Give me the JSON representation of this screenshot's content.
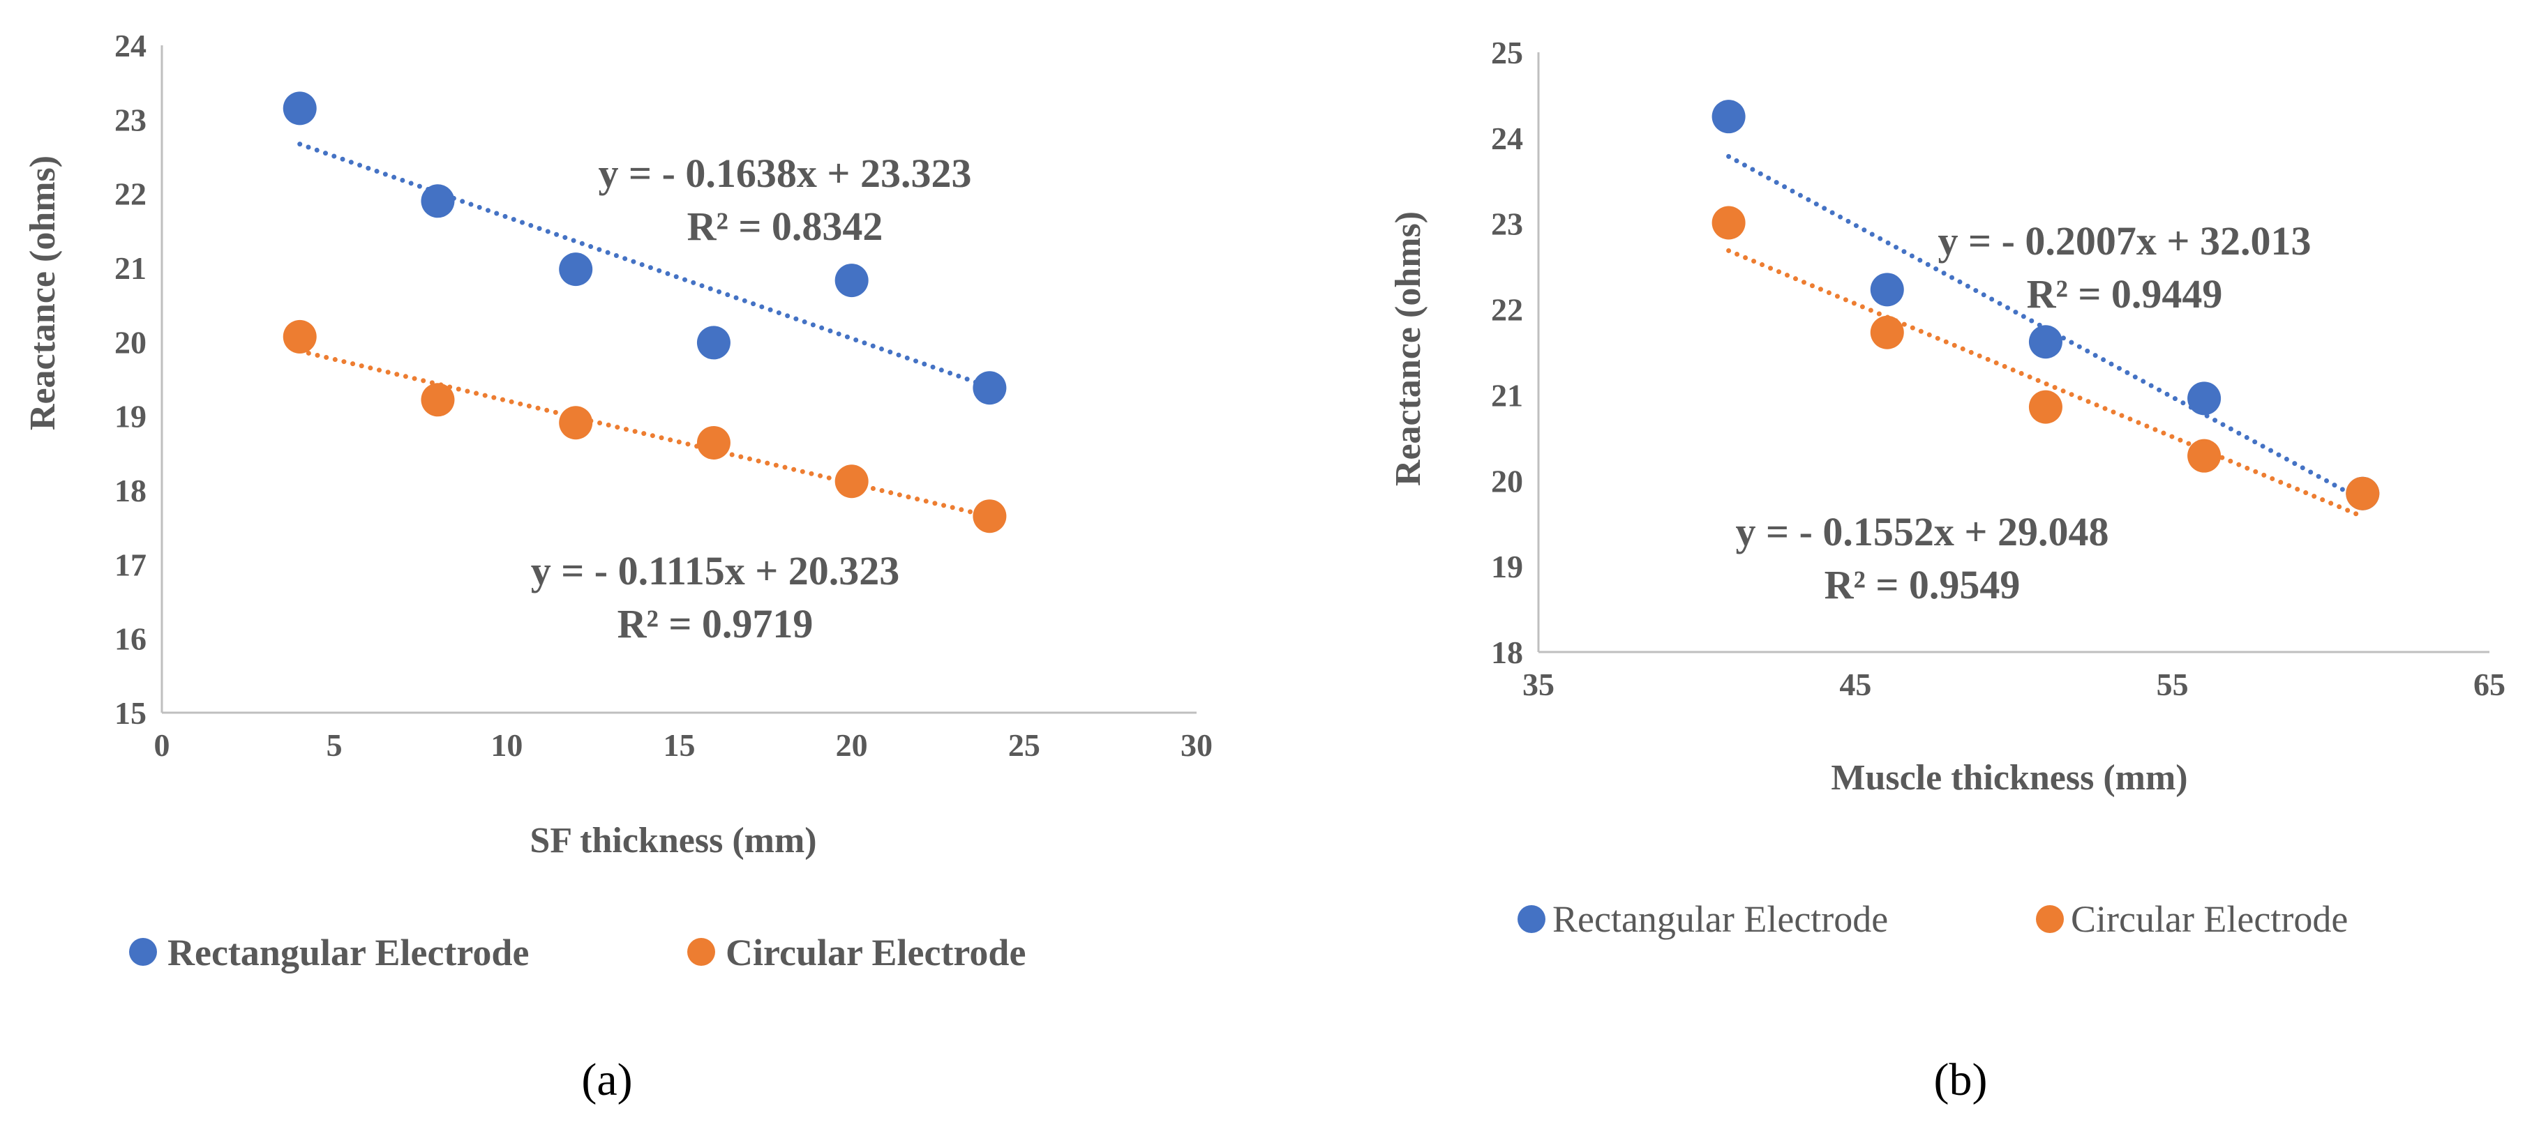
{
  "colors": {
    "rectangular": "#4472C4",
    "circular": "#ED7D31",
    "axis": "#BFBFBF",
    "text": "#595959"
  },
  "chart_data": [
    {
      "type": "scatter",
      "panel_label": "(a)",
      "xlabel": "SF thickness (mm)",
      "ylabel": "Reactance (ohms)",
      "xlim": [
        0,
        30
      ],
      "ylim": [
        15,
        24
      ],
      "xticks": [
        "0",
        "5",
        "10",
        "15",
        "20",
        "25",
        "30"
      ],
      "yticks": [
        "15",
        "16",
        "17",
        "18",
        "19",
        "20",
        "21",
        "22",
        "23",
        "24"
      ],
      "series": [
        {
          "name": "Rectangular Electrode",
          "x": [
            4,
            8,
            12,
            16,
            20,
            24
          ],
          "y": [
            23.15,
            21.9,
            20.98,
            19.99,
            20.83,
            19.38
          ],
          "trendline": {
            "slope": -0.1638,
            "intercept": 23.323,
            "equation": "y = - 0.1638x + 23.323",
            "r2": "R² = 0.8342"
          }
        },
        {
          "name": "Circular Electrode",
          "x": [
            4,
            8,
            12,
            16,
            20,
            24
          ],
          "y": [
            20.07,
            19.22,
            18.91,
            18.64,
            18.12,
            17.65
          ],
          "trendline": {
            "slope": -0.1115,
            "intercept": 20.323,
            "equation": "y = - 0.1115x + 20.323",
            "r2": "R² = 0.9719"
          }
        }
      ],
      "legend": {
        "position": "bottom",
        "style": "bold"
      }
    },
    {
      "type": "scatter",
      "panel_label": "(b)",
      "xlabel": "Muscle thickness (mm)",
      "ylabel": "Reactance (ohms)",
      "xlim": [
        35,
        65
      ],
      "ylim": [
        18,
        25
      ],
      "xticks": [
        "35",
        "45",
        "55",
        "65"
      ],
      "yticks": [
        "18",
        "19",
        "20",
        "21",
        "22",
        "23",
        "24",
        "25"
      ],
      "series": [
        {
          "name": "Rectangular Electrode",
          "x": [
            41,
            46,
            51,
            56,
            61
          ],
          "y": [
            24.25,
            22.23,
            21.62,
            20.96,
            19.85
          ],
          "trendline": {
            "slope": -0.2007,
            "intercept": 32.013,
            "equation": "y = - 0.2007x + 32.013",
            "r2": "R² = 0.9449"
          }
        },
        {
          "name": "Circular Electrode",
          "x": [
            41,
            46,
            51,
            56,
            61
          ],
          "y": [
            23.01,
            21.73,
            20.86,
            20.29,
            19.85
          ],
          "trendline": {
            "slope": -0.1552,
            "intercept": 29.048,
            "equation": "y = - 0.1552x + 29.048",
            "r2": "R² = 0.9549"
          }
        }
      ],
      "legend": {
        "position": "bottom",
        "style": "normal"
      }
    }
  ]
}
